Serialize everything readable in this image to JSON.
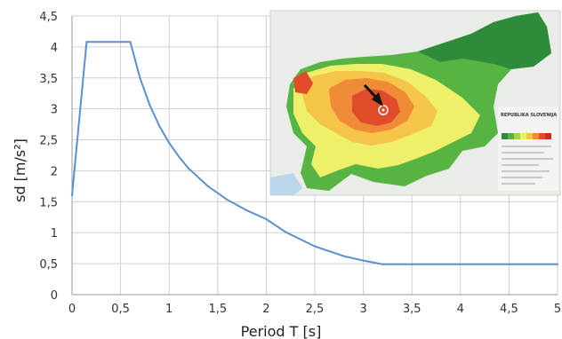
{
  "chart_data": {
    "type": "line",
    "xlabel": "Period T [s]",
    "ylabel": "sd [m/s²]",
    "xlim": [
      0,
      5
    ],
    "ylim": [
      0,
      4.5
    ],
    "x_ticks": [
      "0",
      "0,5",
      "1",
      "1,5",
      "2",
      "2,5",
      "3",
      "3,5",
      "4",
      "4,5",
      "5"
    ],
    "y_ticks": [
      "0",
      "0,5",
      "1",
      "1,5",
      "2",
      "2,5",
      "3",
      "3,5",
      "4",
      "4,5"
    ],
    "grid": true,
    "series": [
      {
        "color": "#5b8fd0",
        "x": [
          0,
          0.15,
          0.6,
          0.7,
          0.8,
          0.9,
          1.0,
          1.1,
          1.2,
          1.4,
          1.6,
          1.8,
          2.0,
          2.2,
          2.5,
          2.8,
          3.0,
          3.2,
          3.5,
          4.0,
          4.5,
          5.0
        ],
        "y": [
          1.6,
          4.08,
          4.08,
          3.5,
          3.06,
          2.72,
          2.45,
          2.23,
          2.04,
          1.75,
          1.53,
          1.36,
          1.22,
          1.01,
          0.78,
          0.62,
          0.55,
          0.49,
          0.49,
          0.49,
          0.49,
          0.49
        ]
      }
    ]
  },
  "inset_map": {
    "title": "REPUBLIKA SLOVENIJA",
    "legend_colors": [
      "#2e8b3a",
      "#57b443",
      "#a6d24e",
      "#eef06a",
      "#f6c449",
      "#ef8a36",
      "#e04b2a",
      "#c82d1f"
    ],
    "arrow_icon": "arrow-icon",
    "marker_icon": "epicenter-marker-icon"
  }
}
